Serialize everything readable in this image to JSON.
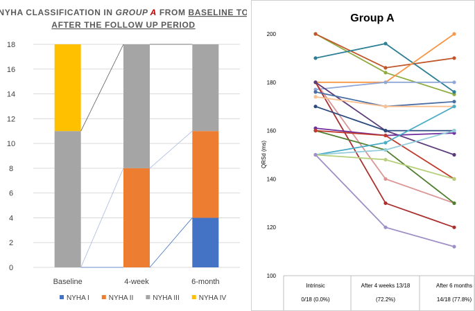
{
  "chart_data": [
    {
      "type": "bar",
      "stacked": true,
      "title_parts": [
        {
          "text": "NYHA CLASSIFICATION IN ",
          "style": "normal"
        },
        {
          "text": "GROUP ",
          "style": "italic"
        },
        {
          "text": "A",
          "style": "italic-red"
        },
        {
          "text": " FROM ",
          "style": "normal"
        },
        {
          "text": "BASELINE TO",
          "style": "underline"
        }
      ],
      "title_line2_parts": [
        {
          "text": "AFTER THE FOLLOW UP PERIOD",
          "style": "underline"
        }
      ],
      "categories": [
        "Baseline",
        "4-week",
        "6-month"
      ],
      "series": [
        {
          "name": "NYHA I",
          "color": "#4472C4",
          "values": [
            0,
            0,
            4
          ]
        },
        {
          "name": "NYHA II",
          "color": "#ED7D31",
          "values": [
            0,
            8,
            7
          ]
        },
        {
          "name": "NYHA III",
          "color": "#A5A5A5",
          "values": [
            11,
            10,
            7
          ]
        },
        {
          "name": "NYHA IV",
          "color": "#FFC000",
          "values": [
            7,
            0,
            0
          ]
        }
      ],
      "ylim": [
        0,
        18
      ],
      "yticks": [
        0,
        2,
        4,
        6,
        8,
        10,
        12,
        14,
        16,
        18
      ],
      "grid": true,
      "legend": "bottom",
      "series_lines": true
    },
    {
      "type": "line",
      "title": "Group A",
      "ylabel": "QRSd (ms)",
      "ylim": [
        100,
        200
      ],
      "yticks": [
        100,
        120,
        140,
        160,
        180,
        200
      ],
      "x_labels": [
        {
          "line1": "Intrinsic",
          "line2": "0/18 (0.0%)"
        },
        {
          "line1": "After 4 weeks 13/18",
          "line2": "(72.2%)"
        },
        {
          "line1": "After 6 months",
          "line2": "14/18 (77.8%)"
        }
      ],
      "series": [
        {
          "color": "#8FAD3F",
          "values": [
            200,
            184,
            175
          ]
        },
        {
          "color": "#C0562A",
          "values": [
            200,
            186,
            190
          ]
        },
        {
          "color": "#2E7F95",
          "values": [
            190,
            196,
            176
          ]
        },
        {
          "color": "#F79646",
          "values": [
            180,
            180,
            200
          ]
        },
        {
          "color": "#8FA8D8",
          "values": [
            177,
            180,
            180
          ]
        },
        {
          "color": "#D99694",
          "values": [
            180,
            140,
            130
          ]
        },
        {
          "color": "#AA2F2F",
          "values": [
            180,
            130,
            120
          ]
        },
        {
          "color": "#5B3A7A",
          "values": [
            180,
            160,
            150
          ]
        },
        {
          "color": "#4A6FA5",
          "values": [
            176,
            170,
            172
          ]
        },
        {
          "color": "#FAC090",
          "values": [
            174,
            170,
            170
          ]
        },
        {
          "color": "#2A4A7F",
          "values": [
            170,
            160,
            160
          ]
        },
        {
          "color": "#7030A0",
          "values": [
            161,
            158,
            159
          ]
        },
        {
          "color": "#4F7F2F",
          "values": [
            160,
            152,
            130
          ]
        },
        {
          "color": "#C0392B",
          "values": [
            160,
            158,
            140
          ]
        },
        {
          "color": "#4BACC6",
          "values": [
            150,
            155,
            170
          ]
        },
        {
          "color": "#92CDDC",
          "values": [
            150,
            152,
            160
          ]
        },
        {
          "color": "#B5CF7A",
          "values": [
            150,
            148,
            140
          ]
        },
        {
          "color": "#9F8FC7",
          "values": [
            150,
            120,
            112
          ]
        }
      ]
    }
  ]
}
